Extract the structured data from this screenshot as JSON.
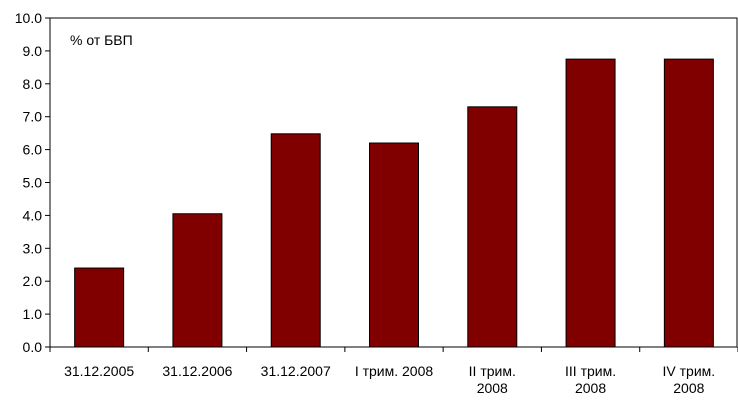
{
  "chart_data": {
    "type": "bar",
    "annotation": "% от БВП",
    "categories": [
      [
        "31.12.2005"
      ],
      [
        "31.12.2006"
      ],
      [
        "31.12.2007"
      ],
      [
        "I трим. 2008"
      ],
      [
        "II трим.",
        "2008"
      ],
      [
        "III трим.",
        "2008"
      ],
      [
        "IV трим.",
        "2008"
      ]
    ],
    "values": [
      2.4,
      4.05,
      6.48,
      6.2,
      7.3,
      8.75,
      8.75
    ],
    "ylim": [
      0,
      10
    ],
    "ytick_step": 1,
    "ytick_labels": [
      "0.0",
      "1.0",
      "2.0",
      "3.0",
      "4.0",
      "5.0",
      "6.0",
      "7.0",
      "8.0",
      "9.0",
      "10.0"
    ],
    "grid": false,
    "colors": {
      "bar": "#800000",
      "bar_stroke": "#000000",
      "axis": "#000000"
    }
  }
}
